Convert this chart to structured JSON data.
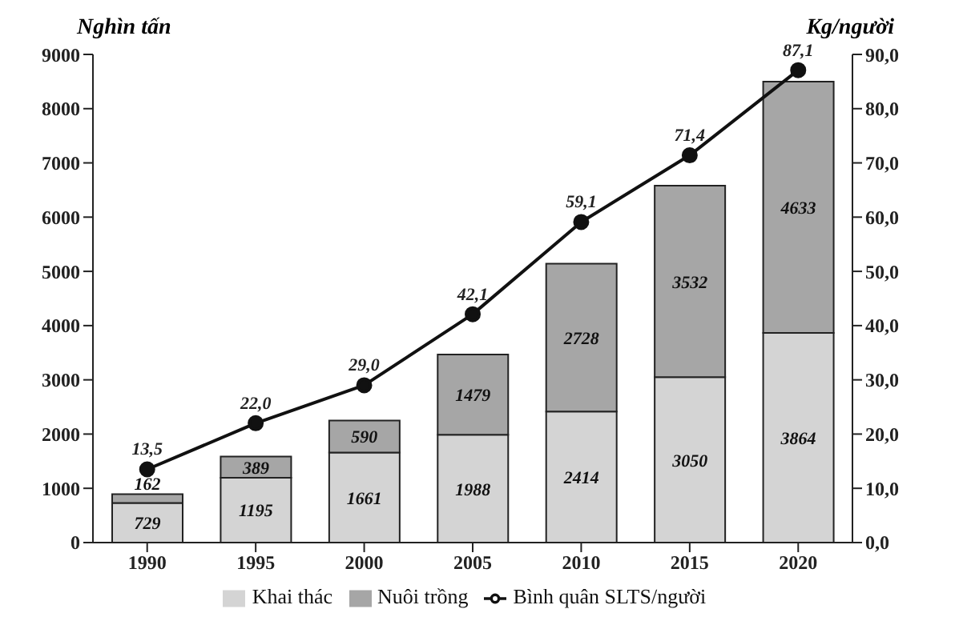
{
  "chart_data": {
    "type": "bar",
    "ylabel": "Nghìn tấn",
    "y2label": "Kg/người",
    "categories": [
      "1990",
      "1995",
      "2000",
      "2005",
      "2010",
      "2015",
      "2020"
    ],
    "series": [
      {
        "name": "Khai thác",
        "color": "#d4d4d4",
        "values": [
          729,
          1195,
          1661,
          1988,
          2414,
          3050,
          3864
        ]
      },
      {
        "name": "Nuôi trồng",
        "color": "#a6a6a6",
        "values": [
          162,
          389,
          590,
          1479,
          2728,
          3532,
          4633
        ]
      },
      {
        "name": "Bình quân SLTS/người",
        "type": "line",
        "axis": "y2",
        "color": "#111111",
        "values": [
          13.5,
          22.0,
          29.0,
          42.1,
          59.1,
          71.4,
          87.1
        ],
        "value_labels": [
          "13,5",
          "22,0",
          "29,0",
          "42,1",
          "59,1",
          "71,4",
          "87,1"
        ]
      }
    ],
    "stacked": true,
    "data_labels": true,
    "marker": "circle",
    "legend": "bottom",
    "ylim": [
      0,
      9000
    ],
    "yticks": [
      0,
      1000,
      2000,
      3000,
      4000,
      5000,
      6000,
      7000,
      8000,
      9000
    ],
    "y2lim": [
      0,
      90
    ],
    "y2ticks": [
      {
        "value": 0,
        "label": "0,0"
      },
      {
        "value": 10,
        "label": "10,0"
      },
      {
        "value": 20,
        "label": "20,0"
      },
      {
        "value": 30,
        "label": "30,0"
      },
      {
        "value": 40,
        "label": "40,0"
      },
      {
        "value": 50,
        "label": "50,0"
      },
      {
        "value": 60,
        "label": "60,0"
      },
      {
        "value": 70,
        "label": "70,0"
      },
      {
        "value": 80,
        "label": "80,0"
      },
      {
        "value": 90,
        "label": "90,0"
      }
    ]
  }
}
